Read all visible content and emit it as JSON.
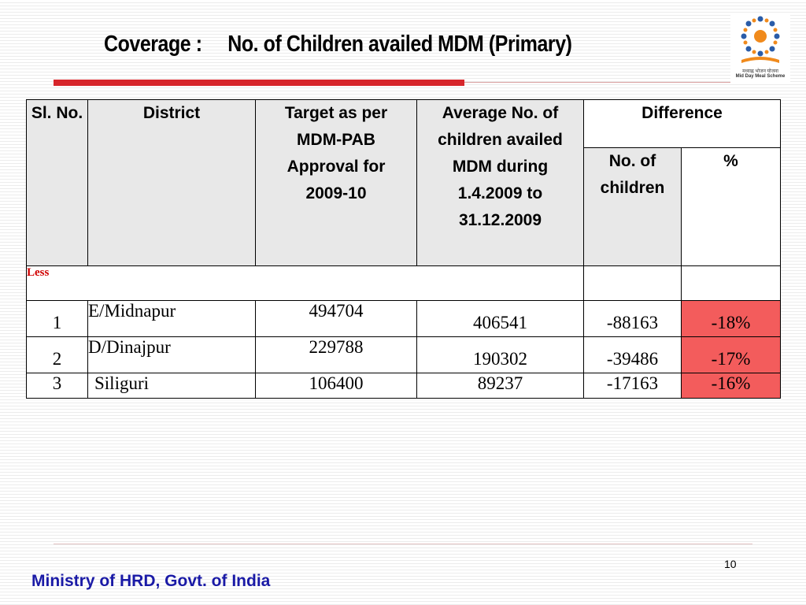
{
  "slide": {
    "title_label": "Coverage :",
    "title_text": "No. of Children availed MDM (Primary)",
    "logo": {
      "line1": "मध्याह्न भोजन योजना",
      "line2": "Mid Day Meal Scheme"
    },
    "page_number": "10",
    "footer": "Ministry of HRD, Govt. of India"
  },
  "table": {
    "headers": {
      "slno": "Sl. No.",
      "district": "District",
      "target": "Target as per MDM-PAB Approval for 2009-10",
      "average": "Average No. of children availed MDM during 1.4.2009 to 31.12.2009",
      "difference": "Difference",
      "diff_count": "No. of children",
      "diff_pct": "%"
    },
    "section_label": "Less",
    "rows": [
      {
        "sl": "1",
        "district": "E/Midnapur",
        "target": "494704",
        "average": "406541",
        "diff": "-88163",
        "pct": "-18%"
      },
      {
        "sl": "2",
        "district": "D/Dinajpur",
        "target": "229788",
        "average": "190302",
        "diff": "-39486",
        "pct": "-17%"
      },
      {
        "sl": "3",
        "district": "Siliguri",
        "target": "106400",
        "average": "89237",
        "diff": "-17163",
        "pct": "-16%"
      }
    ]
  },
  "colors": {
    "accent_red": "#d7262b",
    "highlight_cell": "#f35c5c",
    "footer_blue": "#1a1aa6",
    "less_red": "#d00000"
  }
}
